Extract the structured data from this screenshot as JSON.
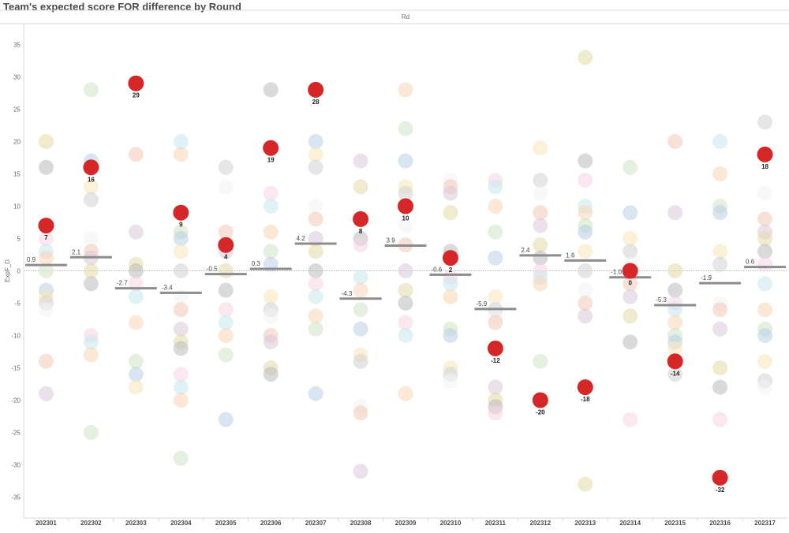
{
  "title": "Team's expected score FOR difference by Round",
  "chart_data": {
    "type": "scatter",
    "title": "Team's expected score FOR difference by Round",
    "column_header": "Rd",
    "ylabel": "ExpF_D",
    "xlabel": "",
    "ylim": [
      -40,
      40
    ],
    "yticks": [
      -35,
      -30,
      -25,
      -20,
      -15,
      -10,
      -5,
      0,
      5,
      10,
      15,
      20,
      25,
      30,
      35
    ],
    "grid": false,
    "zero_line": true,
    "categories": [
      "202301",
      "202302",
      "202303",
      "202304",
      "202305",
      "202306",
      "202307",
      "202308",
      "202309",
      "202310",
      "202311",
      "202312",
      "202313",
      "202314",
      "202315",
      "202316",
      "202317"
    ],
    "highlight_color": "#d62728",
    "average_color": "#8c8c8c",
    "highlighted_team": [
      7,
      16,
      29,
      9,
      4,
      19,
      28,
      8,
      10,
      2,
      -12,
      -20,
      -18,
      0,
      -14,
      -32,
      18
    ],
    "round_average": [
      0.9,
      2.1,
      -2.7,
      -3.4,
      -0.5,
      0.3,
      4.2,
      -4.3,
      3.9,
      -0.6,
      -5.9,
      2.4,
      1.6,
      -1.0,
      -5.3,
      -1.9,
      0.6
    ],
    "other_teams": [
      [
        20,
        16,
        5,
        3,
        2,
        0,
        -3,
        -4,
        -5,
        -6,
        -14,
        -19
      ],
      [
        28,
        17,
        13,
        11,
        5,
        3,
        2,
        0,
        -2,
        -10,
        -11,
        -13,
        -25
      ],
      [
        18,
        6,
        1,
        0,
        -2,
        -4,
        -8,
        -14,
        -16,
        -18
      ],
      [
        20,
        18,
        6,
        5,
        3,
        0,
        -4,
        -6,
        -9,
        -11,
        -12,
        -16,
        -18,
        -20,
        -29
      ],
      [
        16,
        13,
        6,
        3,
        0,
        -3,
        -6,
        -8,
        -10,
        -13,
        -23
      ],
      [
        28,
        12,
        10,
        6,
        3,
        1,
        -4,
        -6,
        -7,
        -10,
        -11,
        -15,
        -16
      ],
      [
        20,
        18,
        16,
        10,
        8,
        5,
        3,
        0,
        -2,
        -4,
        -7,
        -9,
        -19
      ],
      [
        17,
        13,
        5,
        4,
        -1,
        -3,
        -6,
        -9,
        -13,
        -14,
        -21,
        -22,
        -31
      ],
      [
        28,
        22,
        17,
        13,
        12,
        7,
        4,
        0,
        -3,
        -5,
        -8,
        -10,
        -19
      ],
      [
        14,
        13,
        12,
        9,
        3,
        -1,
        -2,
        -4,
        -9,
        -10,
        -15,
        -16,
        -17
      ],
      [
        14,
        13,
        10,
        6,
        2,
        -4,
        -6,
        -7,
        -8,
        -18,
        -20,
        -21,
        -22
      ],
      [
        19,
        14,
        12,
        9,
        7,
        4,
        2,
        0,
        -1,
        -2,
        -14
      ],
      [
        33,
        17,
        14,
        10,
        9,
        7,
        6,
        3,
        0,
        -3,
        -5,
        -7,
        -33
      ],
      [
        16,
        9,
        5,
        3,
        1,
        -2,
        -4,
        -7,
        -11,
        -23
      ],
      [
        20,
        9,
        0,
        -3,
        -5,
        -6,
        -8,
        -10,
        -11,
        -12,
        -16
      ],
      [
        20,
        15,
        10,
        9,
        3,
        1,
        -5,
        -6,
        -9,
        -15,
        -18,
        -23
      ],
      [
        23,
        12,
        8,
        6,
        5,
        3,
        1,
        -2,
        -6,
        -9,
        -10,
        -14,
        -17,
        -18
      ]
    ],
    "other_team_palette": [
      "#e3d9a8",
      "#bcbcbc",
      "#f6d4e4",
      "#c9e8ef",
      "#f8d6b4",
      "#cfe4c6",
      "#b9d0e6",
      "#f6e6b8",
      "#d2d2d2",
      "#f2f2f2",
      "#f3c8b6",
      "#d8c8d8"
    ]
  }
}
